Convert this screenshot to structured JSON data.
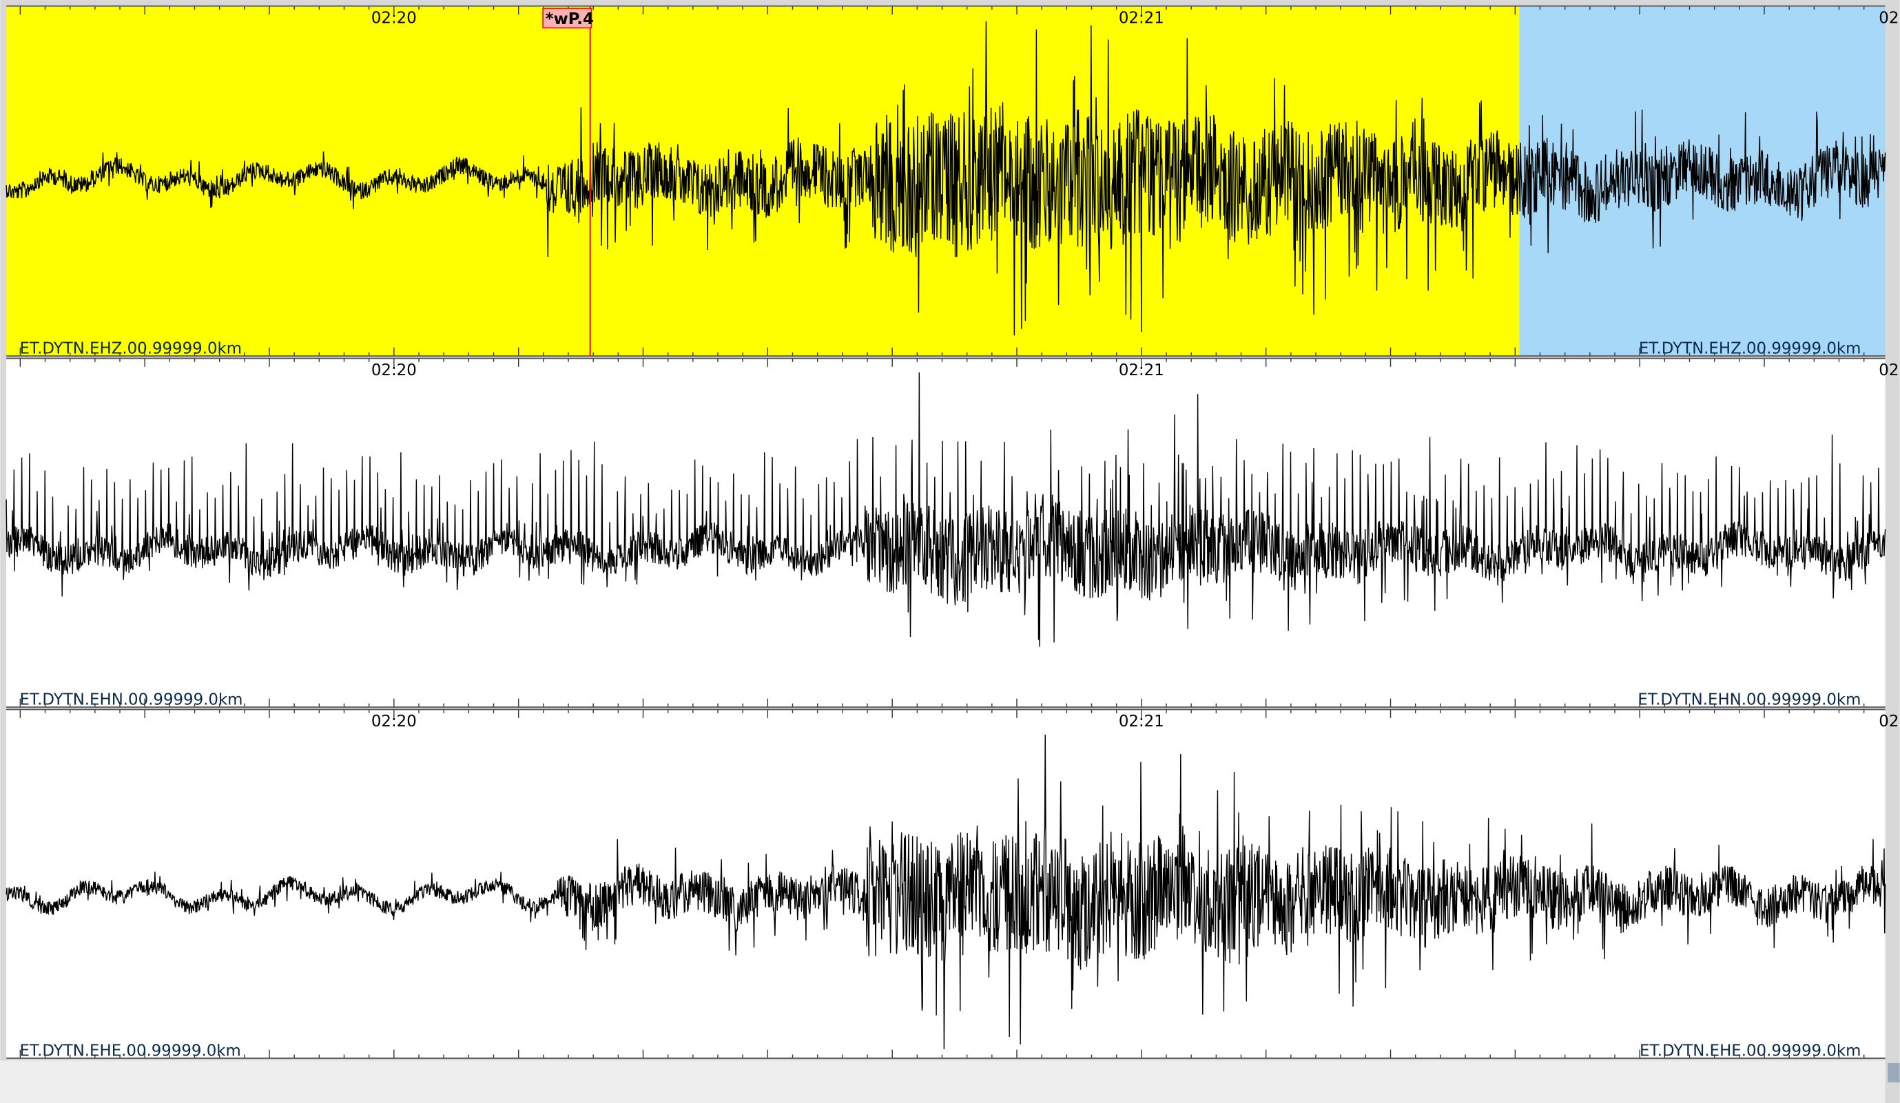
{
  "panels": [
    {
      "time_labels": [
        "02:20",
        "02:21",
        "02"
      ],
      "station_label_left": "ET.DYTN.EHZ.00.99999.0km",
      "station_label_right": "ET.DYTN.EHZ.00.99999.0km",
      "pick": "*wP.4"
    },
    {
      "time_labels": [
        "02:20",
        "02:21",
        "02"
      ],
      "station_label_left": "ET.DYTN.EHN.00.99999.0km",
      "station_label_right": "ET.DYTN.EHN.00.99999.0km"
    },
    {
      "time_labels": [
        "02:20",
        "02:21",
        "02"
      ],
      "station_label_left": "ET.DYTN.EHE.00.99999.0km",
      "station_label_right": "ET.DYTN.EHE.00.99999.0km"
    }
  ]
}
